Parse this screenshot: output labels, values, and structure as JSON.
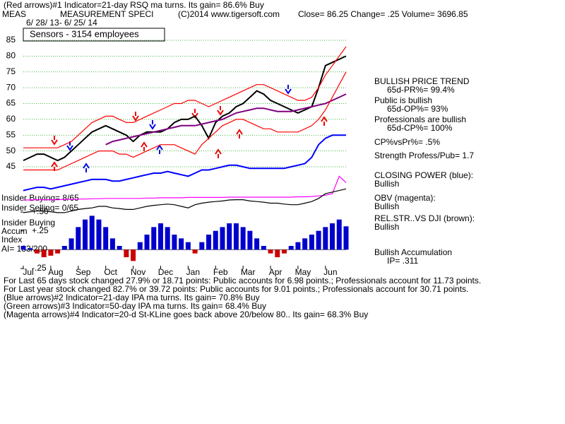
{
  "chart_data": [
    {
      "type": "line",
      "header": [
        "(Red arrows)#1 Indicator=21-day RSQ ma turns.  Its gain= 86.6% Buy",
        "MEAS",
        "MEASUREMENT SPECI",
        "(C)2014 www.tigersoft.com",
        "Close=  86.25  Change= .25 Volume= 3696.85",
        "6/ 28/ 13- 6/ 25/ 14"
      ],
      "subtitle": "Sensors - 3154 employees",
      "side_notes": [
        "BULLISH PRICE TREND",
        "65d-PR%= 99.4%",
        "Public is bullish",
        "65d-OP%= 93%",
        "Professionals are bullish",
        "65d-CP%= 100%",
        "CP%vsPr%=  .5%",
        "Strength Profess/Pub= 1.7",
        "CLOSING POWER (blue):",
        "Bullish",
        "OBV (magenta):",
        "Bullish",
        "REL.STR..VS DJI (brown):",
        "Bullish",
        "Bullish Accumulation",
        "IP=  .311"
      ],
      "panel_labels": [
        "Insider Buying= 8/65",
        "Insider Selling= 0/65",
        "Insider Buying",
        "Accum",
        "Index",
        "AI= 183/200"
      ],
      "footer": [
        "For Last 65 days stock changed  27.9% or  18.71 points:  Public accounts for  6.98 points.;  Professionals account for  11.73 points.",
        "For Last year stock changed  82.7% or  39.72 points:  Public accounts for  9.01 points.;  Professionals account for  30.71 points.",
        "(Blue arrows)#2 Indicator=21-day IPA ma turns.  Its gain= 70.8% Buy",
        "(Green arrows)#3 Indicator=50-day IPA ma turns.  Its gain= 68.4% Buy",
        "(Magenta arrows)#4 Indicator=20-d St-KLine goes back above 20/below 80..  Its gain= 68.3% Buy"
      ],
      "categories": [
        "Jul",
        null,
        null,
        null,
        "Aug",
        null,
        null,
        null,
        "Sep",
        null,
        null,
        null,
        "Oct",
        null,
        null,
        null,
        "Nov",
        null,
        null,
        null,
        "Dec",
        null,
        null,
        null,
        "Jan",
        null,
        null,
        null,
        "Feb",
        null,
        null,
        null,
        "Mar",
        null,
        null,
        null,
        "Apr",
        null,
        null,
        null,
        "May",
        null,
        null,
        null,
        "Jun",
        null,
        null,
        null
      ],
      "ylim": [
        28,
        88
      ],
      "yticks": [
        45,
        50,
        55,
        60,
        65,
        70,
        75,
        80,
        85
      ],
      "grid": true,
      "series": [
        {
          "color": "#000000",
          "values": [
            47,
            48,
            49,
            49,
            48,
            47,
            48,
            50,
            52,
            54,
            56,
            57,
            58,
            57,
            56,
            55,
            53,
            55,
            56,
            56,
            56,
            57,
            59,
            60,
            60,
            61,
            58,
            54,
            59,
            61,
            62,
            64,
            65,
            67,
            69,
            68,
            66,
            65,
            64,
            63,
            62,
            63,
            64,
            70,
            77,
            78,
            79,
            80
          ]
        },
        {
          "color": "#800080",
          "values": [
            null,
            null,
            null,
            null,
            null,
            null,
            null,
            null,
            null,
            null,
            null,
            null,
            52,
            53,
            53.5,
            54,
            54.5,
            55,
            55.5,
            56,
            56.5,
            57,
            57.5,
            58,
            58,
            58,
            58.5,
            59,
            59.5,
            60,
            61,
            62,
            62.5,
            63,
            63.5,
            63.5,
            63,
            62.5,
            62.5,
            62.5,
            63,
            63.5,
            64,
            64.5,
            65,
            66,
            67,
            68
          ]
        },
        {
          "color": "#ff0000",
          "values": [
            51,
            51,
            51,
            51,
            51,
            51,
            52,
            53,
            55,
            57,
            59,
            60,
            61,
            61,
            60,
            59,
            59,
            60,
            61,
            62,
            63,
            64,
            65,
            65,
            66,
            66,
            65,
            64,
            65,
            66,
            67,
            68,
            69,
            70,
            71,
            71,
            70,
            69,
            68,
            67,
            66,
            66,
            67,
            70,
            74,
            77,
            80,
            83
          ]
        },
        {
          "color": "#ff0000",
          "values": [
            44,
            44,
            44,
            44,
            44,
            44,
            45,
            46,
            47,
            48,
            49,
            50,
            50,
            50,
            49,
            49,
            48,
            49,
            50,
            51,
            52,
            52,
            52,
            51,
            50,
            49,
            52,
            54,
            56,
            58,
            59,
            60,
            60,
            59,
            58,
            57,
            57,
            56,
            56,
            56,
            56,
            57,
            58,
            60,
            63,
            67,
            71,
            75
          ]
        },
        {
          "color": "#0000ff",
          "values": [
            37.5,
            38,
            38.5,
            38.5,
            38,
            38.5,
            39,
            39.5,
            40,
            40.5,
            41,
            41,
            41,
            40.5,
            40.5,
            41,
            41.5,
            42,
            42.5,
            43,
            43,
            43.5,
            43,
            42.5,
            42,
            43,
            44,
            44,
            44.5,
            45,
            45.5,
            45.5,
            45,
            44.5,
            44.5,
            44.5,
            44.5,
            44.5,
            44.5,
            45,
            45.5,
            46,
            48,
            52,
            54,
            55,
            55,
            55
          ]
        },
        {
          "color": "#ff00ff",
          "values": [
            34.5,
            34.5,
            34.6,
            34.6,
            34.6,
            34.6,
            34.7,
            34.7,
            34.8,
            34.8,
            34.9,
            34.9,
            35,
            35,
            35,
            35,
            35,
            35,
            35.1,
            35.1,
            35.2,
            35.2,
            35.2,
            35.2,
            35.3,
            35.3,
            35.3,
            35.3,
            35.3,
            35.3,
            35.4,
            35.4,
            35.4,
            35.4,
            35.4,
            35.4,
            35.4,
            35.4,
            35.4,
            35.4,
            35.5,
            35.5,
            35.6,
            35.8,
            36,
            36.5,
            42,
            40
          ]
        },
        {
          "color": "#000000",
          "values": [
            30.5,
            30.8,
            31,
            31,
            30.8,
            30.5,
            30.5,
            31,
            31.5,
            31.8,
            32,
            32.5,
            32.5,
            32,
            31.8,
            31.5,
            31.5,
            32,
            32.5,
            32.8,
            33,
            33.2,
            33,
            32.5,
            32,
            33,
            33.5,
            33.8,
            34,
            34.2,
            34.5,
            34.6,
            34.6,
            34.2,
            34,
            33.8,
            33.5,
            33.5,
            33.2,
            33,
            33,
            33.5,
            34,
            35,
            36.5,
            37,
            37.5,
            38
          ]
        }
      ]
    },
    {
      "type": "bar",
      "color": "#0000cc",
      "negative_color": "#cc0000",
      "ylim": [
        -0.3,
        0.55
      ],
      "yticks": [
        {
          "value": 0.5,
          "label": "+.50"
        },
        {
          "value": 0.25,
          "label": "+.25"
        },
        {
          "value": -0.25,
          "label": "-.25"
        }
      ],
      "values": [
        0.05,
        0.02,
        -0.05,
        -0.1,
        -0.08,
        -0.05,
        0.05,
        0.15,
        0.3,
        0.4,
        0.45,
        0.4,
        0.3,
        0.15,
        0.05,
        -0.1,
        -0.15,
        0.1,
        0.2,
        0.3,
        0.35,
        0.3,
        0.2,
        0.15,
        0.1,
        -0.05,
        0.1,
        0.2,
        0.25,
        0.3,
        0.35,
        0.35,
        0.3,
        0.25,
        0.15,
        0.05,
        -0.05,
        -0.1,
        -0.05,
        0.05,
        0.1,
        0.15,
        0.2,
        0.25,
        0.3,
        0.35,
        0.4,
        0.31
      ]
    }
  ]
}
